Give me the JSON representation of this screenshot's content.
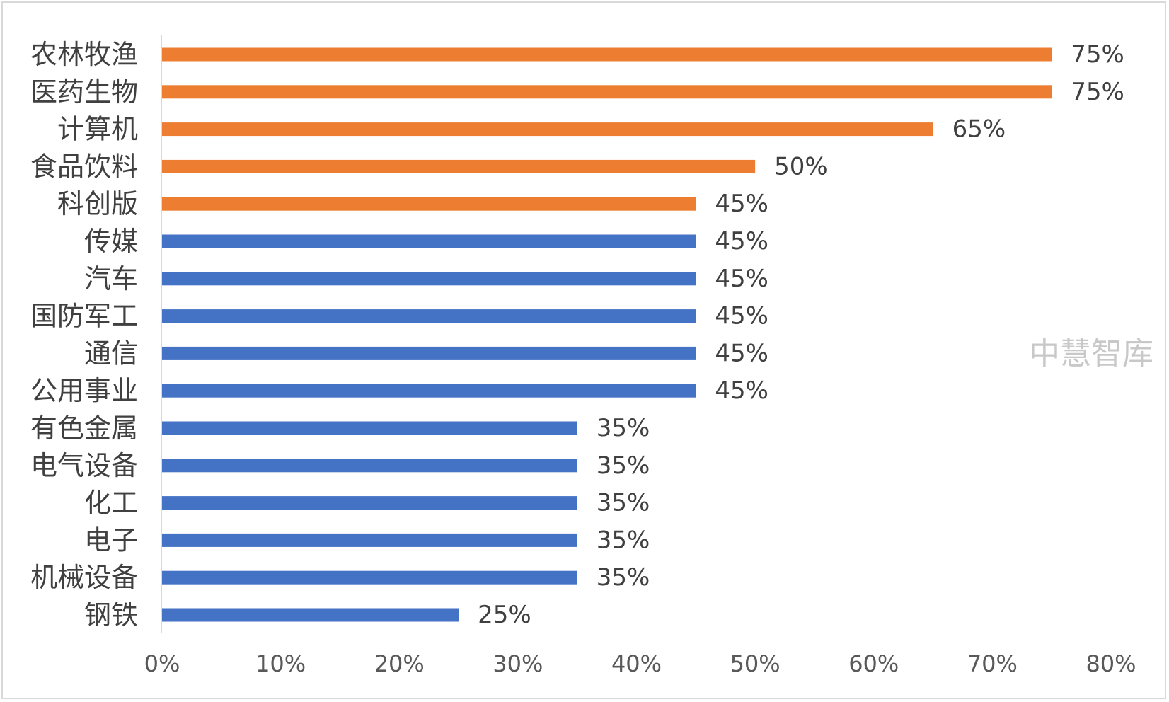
{
  "chart_data": {
    "type": "bar",
    "orientation": "horizontal",
    "categories": [
      "农林牧渔",
      "医药生物",
      "计算机",
      "食品饮料",
      "科创版",
      "传媒",
      "汽车",
      "国防军工",
      "通信",
      "公用事业",
      "有色金属",
      "电气设备",
      "化工",
      "电子",
      "机械设备",
      "钢铁"
    ],
    "values": [
      75,
      75,
      65,
      50,
      45,
      45,
      45,
      45,
      45,
      45,
      35,
      35,
      35,
      35,
      35,
      25
    ],
    "value_labels": [
      "75%",
      "75%",
      "65%",
      "50%",
      "45%",
      "45%",
      "45%",
      "45%",
      "45%",
      "45%",
      "35%",
      "35%",
      "35%",
      "35%",
      "35%",
      "25%"
    ],
    "highlight_count": 5,
    "colors": {
      "highlight": "#ED7D31",
      "normal": "#4472C4",
      "axis": "#d9d9d9"
    },
    "xlim": [
      0,
      80
    ],
    "xticks": [
      0,
      10,
      20,
      30,
      40,
      50,
      60,
      70,
      80
    ],
    "xtick_labels": [
      "0%",
      "10%",
      "20%",
      "30%",
      "40%",
      "50%",
      "60%",
      "70%",
      "80%"
    ],
    "grid": false,
    "legend": "none"
  },
  "watermark": "中慧智库"
}
